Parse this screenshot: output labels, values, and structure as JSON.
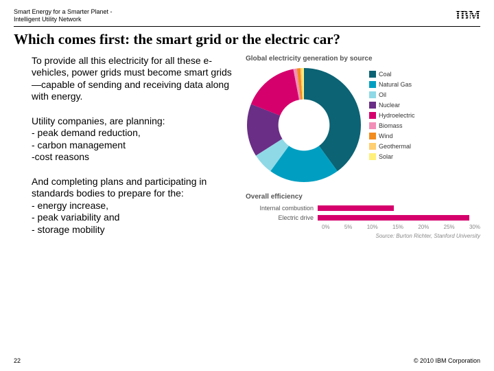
{
  "header": {
    "line1": "Smart Energy for a Smarter Planet  -",
    "line2": "Intelligent Utility Network",
    "logo_text": "IBM"
  },
  "title": "Which comes first: the smart grid or the electric car?",
  "body": {
    "p1": "To provide all this electricity for all these e-vehicles, power grids must become smart grids—capable of sending and receiving data along with energy.",
    "p2": "Utility companies, are planning:\n- peak demand reduction,\n- carbon management\n-cost reasons",
    "p3": "And  completing plans and participating in standards bodies to prepare for the:\n- energy increase,\n- peak variability and\n- storage mobility"
  },
  "donut": {
    "title": "Global electricity generation by source",
    "size": 170,
    "inner_ratio": 0.45,
    "background": "#ffffff",
    "series": [
      {
        "label": "Coal",
        "value": 40,
        "color": "#0b6374"
      },
      {
        "label": "Natural Gas",
        "value": 20,
        "color": "#009fc2"
      },
      {
        "label": "Oil",
        "value": 6,
        "color": "#8fd9e6"
      },
      {
        "label": "Nuclear",
        "value": 15,
        "color": "#6a2e86"
      },
      {
        "label": "Hydroelectric",
        "value": 16,
        "color": "#d6006c"
      },
      {
        "label": "Biomass",
        "value": 1,
        "color": "#f28fb8"
      },
      {
        "label": "Wind",
        "value": 1,
        "color": "#f28c1e"
      },
      {
        "label": "Geothermal",
        "value": 0.5,
        "color": "#ffcf70"
      },
      {
        "label": "Solar",
        "value": 0.5,
        "color": "#fff07a"
      }
    ],
    "legend_fontsize": 9
  },
  "efficiency": {
    "title": "Overall efficiency",
    "bar_color": "#d6006c",
    "axis_color": "#888888",
    "label_color": "#555555",
    "max": 30,
    "ticks": [
      "0%",
      "5%",
      "10%",
      "15%",
      "20%",
      "25%",
      "30%"
    ],
    "rows": [
      {
        "label": "Internal combustion",
        "value": 14
      },
      {
        "label": "Electric drive",
        "value": 28
      }
    ],
    "source": "Source: Burton Richter, Stanford University"
  },
  "footer": {
    "page": "22",
    "copyright": "© 2010 IBM Corporation"
  }
}
